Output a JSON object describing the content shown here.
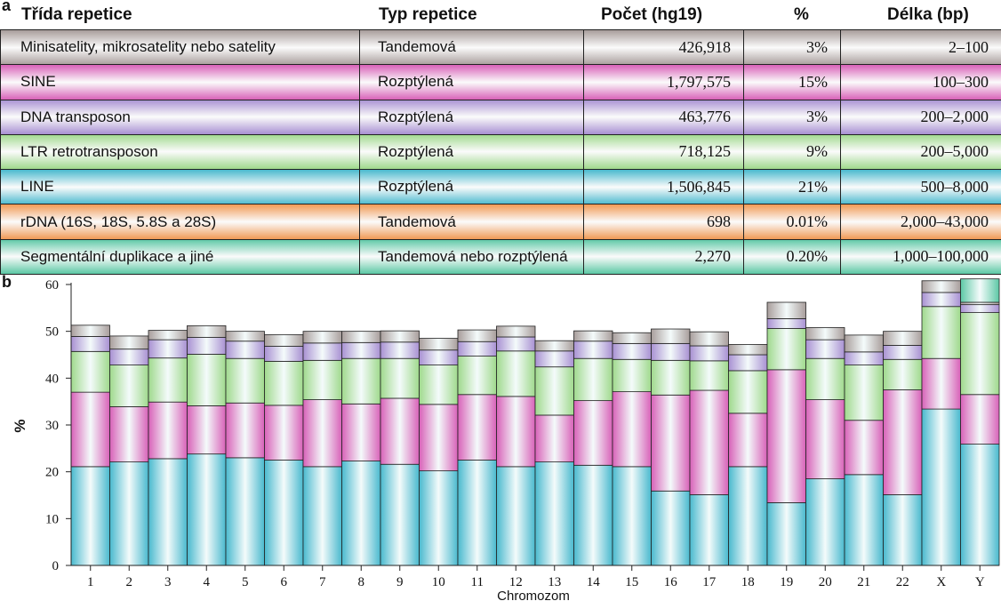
{
  "panel_labels": {
    "a": "a",
    "b": "b"
  },
  "table": {
    "headers": [
      "Třída repetice",
      "Typ repetice",
      "Počet (hg19)",
      "%",
      "Délka (bp)"
    ],
    "rows": [
      {
        "class": "Minisatelity, mikrosatelity nebo satelity",
        "type": "Tandemová",
        "count": "426,918",
        "percent": "3%",
        "length": "2–100",
        "color": "#a89d9b"
      },
      {
        "class": "SINE",
        "type": "Rozptýlená",
        "count": "1,797,575",
        "percent": "15%",
        "length": "100–300",
        "color": "#d861b8"
      },
      {
        "class": "DNA transposon",
        "type": "Rozptýlená",
        "count": "463,776",
        "percent": "3%",
        "length": "200–2,000",
        "color": "#a890d2"
      },
      {
        "class": "LTR retrotransposon",
        "type": "Rozptýlená",
        "count": "718,125",
        "percent": "9%",
        "length": "200–5,000",
        "color": "#9fd98c"
      },
      {
        "class": "LINE",
        "type": "Rozptýlená",
        "count": "1,506,845",
        "percent": "21%",
        "length": "500–8,000",
        "color": "#49b9ce"
      },
      {
        "class": "rDNA (16S, 18S, 5.8S a 28S)",
        "type": "Tandemová",
        "count": "698",
        "percent": "0.01%",
        "length": "2,000–43,000",
        "color": "#f19a55"
      },
      {
        "class": "Segmentální duplikace a jiné",
        "type": "Tandemová nebo rozptýlená",
        "count": "2,270",
        "percent": "0.20%",
        "length": "1,000–100,000",
        "color": "#5cc8a5"
      }
    ]
  },
  "chart_data": {
    "type": "bar",
    "stacked": true,
    "xlabel": "Chromozom",
    "ylabel": "%",
    "ylim": [
      0,
      60
    ],
    "yticks": [
      0,
      10,
      20,
      30,
      40,
      50,
      60
    ],
    "categories": [
      "1",
      "2",
      "3",
      "4",
      "5",
      "6",
      "7",
      "8",
      "9",
      "10",
      "11",
      "12",
      "13",
      "14",
      "15",
      "16",
      "17",
      "18",
      "19",
      "20",
      "21",
      "22",
      "X",
      "Y"
    ],
    "series": [
      {
        "name": "LINE",
        "color": "#49b9ce",
        "values": [
          21.1,
          22.1,
          22.8,
          23.8,
          23.0,
          22.5,
          21.1,
          22.3,
          21.6,
          20.2,
          22.5,
          21.1,
          22.1,
          21.4,
          21.1,
          15.9,
          15.1,
          21.1,
          13.4,
          18.5,
          19.4,
          15.1,
          33.4,
          25.9
        ]
      },
      {
        "name": "SINE",
        "color": "#d861b8",
        "values": [
          15.9,
          11.8,
          12.1,
          10.3,
          11.7,
          11.7,
          14.3,
          12.2,
          14.1,
          14.2,
          14.0,
          15.0,
          10.0,
          13.8,
          16.0,
          20.5,
          22.3,
          11.4,
          28.4,
          16.9,
          11.6,
          22.4,
          10.8,
          10.6
        ]
      },
      {
        "name": "LTR retrotransposon",
        "color": "#9fd98c",
        "values": [
          8.7,
          8.9,
          9.4,
          11.0,
          9.5,
          9.4,
          8.4,
          9.7,
          8.5,
          8.4,
          8.2,
          9.7,
          10.3,
          9.0,
          6.9,
          7.4,
          6.3,
          9.1,
          8.8,
          8.8,
          11.8,
          6.5,
          11.1,
          17.5
        ]
      },
      {
        "name": "DNA transposon",
        "color": "#a890d2",
        "values": [
          3.2,
          3.4,
          3.9,
          3.6,
          3.7,
          3.2,
          3.7,
          3.4,
          3.5,
          3.2,
          3.1,
          3.0,
          3.4,
          3.7,
          3.4,
          3.6,
          3.2,
          3.4,
          2.1,
          4.0,
          2.8,
          3.0,
          3.0,
          1.7
        ]
      },
      {
        "name": "Minisatelity, mikrosatelity nebo satelity",
        "color": "#a89d9b",
        "values": [
          2.4,
          2.8,
          2.0,
          2.5,
          2.1,
          2.5,
          2.5,
          2.4,
          2.4,
          2.5,
          2.5,
          2.3,
          2.2,
          2.2,
          2.3,
          3.1,
          3.0,
          2.2,
          3.5,
          2.6,
          3.6,
          3.0,
          2.5,
          0.5
        ]
      },
      {
        "name": "Segmentální duplikace a jiné",
        "color": "#5cc8a5",
        "values": [
          0,
          0,
          0,
          0,
          0,
          0,
          0,
          0,
          0,
          0,
          0,
          0,
          0,
          0,
          0,
          0,
          0,
          0,
          0,
          0,
          0,
          0,
          0,
          5.0
        ]
      }
    ]
  }
}
